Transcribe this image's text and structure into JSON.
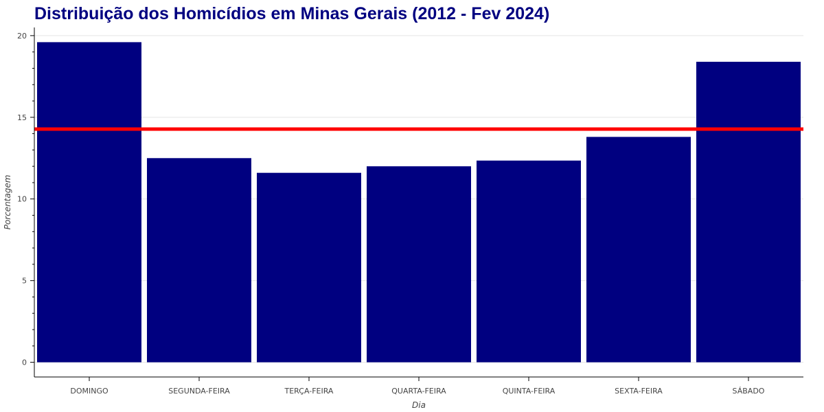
{
  "chart_data": {
    "type": "bar",
    "title": "Distribuição dos Homicídios em Minas Gerais (2012 - Fev 2024)",
    "xlabel": "Dia",
    "ylabel": "Porcentagem",
    "categories": [
      "DOMINGO",
      "SEGUNDA-FEIRA",
      "TERÇA-FEIRA",
      "QUARTA-FEIRA",
      "QUINTA-FEIRA",
      "SEXTA-FEIRA",
      "SÁBADO"
    ],
    "values": [
      19.6,
      12.5,
      11.6,
      12.0,
      12.35,
      13.8,
      18.4
    ],
    "reference_line": {
      "value": 14.28,
      "color": "#ff0000"
    },
    "ylim": [
      -0.9,
      20.5
    ],
    "yticks": [
      0,
      5,
      10,
      15,
      20
    ],
    "bar_color": "#000080",
    "grid": true
  }
}
